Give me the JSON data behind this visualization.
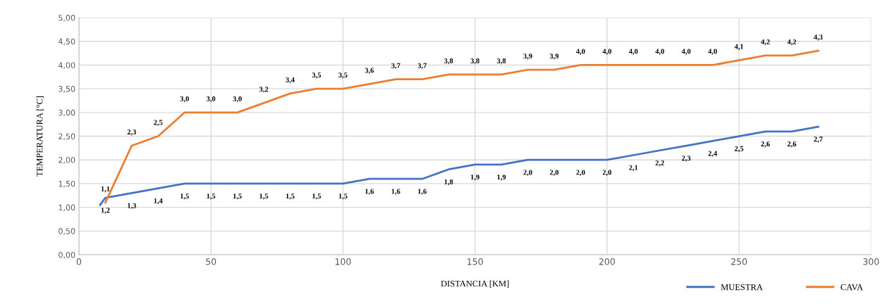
{
  "chart_data": {
    "type": "line",
    "xlabel": "DISTANCIA [KM]",
    "ylabel": "TEMPERATURA [°C]",
    "xlim": [
      0,
      300
    ],
    "xticks": [
      0,
      50,
      100,
      150,
      200,
      250,
      300
    ],
    "ylim": [
      0,
      5
    ],
    "yticks": [
      {
        "value": 0,
        "label": "0,00"
      },
      {
        "value": 0.5,
        "label": "0,50"
      },
      {
        "value": 1,
        "label": "1,00"
      },
      {
        "value": 1.5,
        "label": "1,50"
      },
      {
        "value": 2,
        "label": "2,00"
      },
      {
        "value": 2.5,
        "label": "2,50"
      },
      {
        "value": 3,
        "label": "3,00"
      },
      {
        "value": 3.5,
        "label": "3,50"
      },
      {
        "value": 4,
        "label": "4,00"
      },
      {
        "value": 4.5,
        "label": "4,50"
      },
      {
        "value": 5,
        "label": "5,00"
      }
    ],
    "grid": true,
    "legend": "bottom right",
    "marker": "none",
    "line_style": "solid",
    "series": [
      {
        "name": "MUESTRA",
        "color": "#4472c4",
        "x": [
          8,
          10,
          20,
          30,
          40,
          50,
          60,
          70,
          80,
          90,
          100,
          110,
          120,
          130,
          140,
          150,
          160,
          170,
          180,
          190,
          200,
          210,
          220,
          230,
          240,
          250,
          260,
          270,
          280
        ],
        "values": [
          1.05,
          1.2,
          1.3,
          1.4,
          1.5,
          1.5,
          1.5,
          1.5,
          1.5,
          1.5,
          1.5,
          1.6,
          1.6,
          1.6,
          1.8,
          1.9,
          1.9,
          2.0,
          2.0,
          2.0,
          2.0,
          2.1,
          2.2,
          2.3,
          2.4,
          2.5,
          2.6,
          2.6,
          2.7
        ],
        "value_labels": [
          null,
          "1,2",
          "1,3",
          "1,4",
          "1,5",
          "1,5",
          "1,5",
          "1,5",
          "1,5",
          "1,5",
          "1,5",
          "1,6",
          "1,6",
          "1,6",
          "1,8",
          "1,9",
          "1,9",
          "2,0",
          "2,0",
          "2,0",
          "2,0",
          "2,1",
          "2,2",
          "2,3",
          "2,4",
          "2,5",
          "2,6",
          "2,6",
          "2,7"
        ]
      },
      {
        "name": "CAVA",
        "color": "#ed7d31",
        "x": [
          10,
          20,
          30,
          40,
          50,
          60,
          70,
          80,
          90,
          100,
          110,
          120,
          130,
          140,
          150,
          160,
          170,
          180,
          190,
          200,
          210,
          220,
          230,
          240,
          250,
          260,
          270,
          280
        ],
        "values": [
          1.1,
          2.3,
          2.5,
          3.0,
          3.0,
          3.0,
          3.2,
          3.4,
          3.5,
          3.5,
          3.6,
          3.7,
          3.7,
          3.8,
          3.8,
          3.8,
          3.9,
          3.9,
          4.0,
          4.0,
          4.0,
          4.0,
          4.0,
          4.0,
          4.1,
          4.2,
          4.2,
          4.3
        ],
        "value_labels": [
          "1,1",
          "2,3",
          "2,5",
          "3,0",
          "3,0",
          "3,0",
          "3,2",
          "3,4",
          "3,5",
          "3,5",
          "3,6",
          "3,7",
          "3,7",
          "3,8",
          "3,8",
          "3,8",
          "3,9",
          "3,9",
          "4,0",
          "4,0",
          "4,0",
          "4,0",
          "4,0",
          "4,0",
          "4,1",
          "4,2",
          "4,2",
          "4,3"
        ]
      }
    ]
  }
}
